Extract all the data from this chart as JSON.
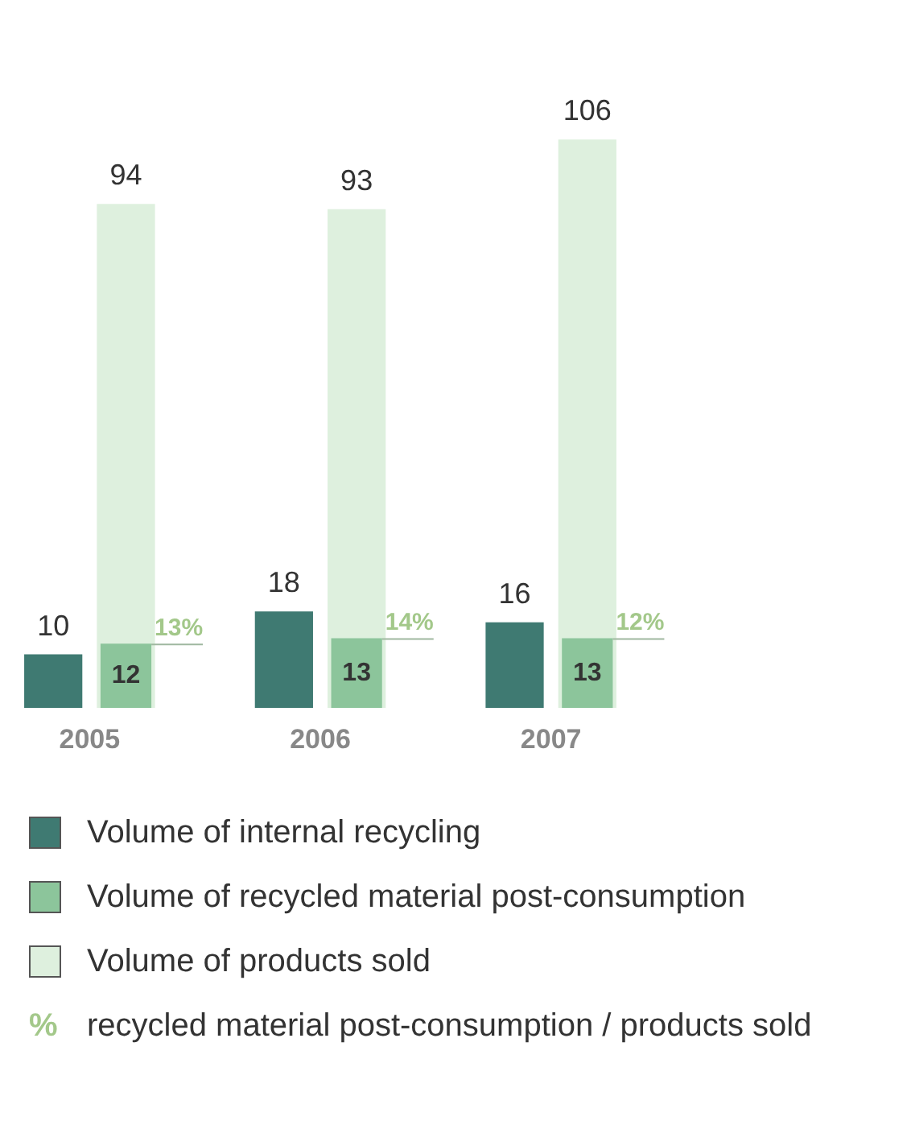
{
  "chart_data": {
    "type": "bar",
    "categories": [
      "2005",
      "2006",
      "2007"
    ],
    "series": [
      {
        "name": "Volume of internal recycling",
        "color": "#3f7a72",
        "values": [
          10,
          18,
          16
        ]
      },
      {
        "name": "Volume of recycled material post-consumption",
        "color": "#8cc59b",
        "values": [
          12,
          13,
          13
        ]
      },
      {
        "name": "Volume of products sold",
        "color": "#def0de",
        "values": [
          94,
          93,
          106
        ]
      }
    ],
    "data_labels": true,
    "grid": false,
    "legend": "bottom",
    "tick_labels": "x",
    "annotations": [
      {
        "text": "13%",
        "x": "2005",
        "y": 12
      },
      {
        "text": "14%",
        "x": "2006",
        "y": 13
      },
      {
        "text": "12%",
        "x": "2007",
        "y": 13
      },
      "% recycled material post-consumption / products sold"
    ]
  }
}
